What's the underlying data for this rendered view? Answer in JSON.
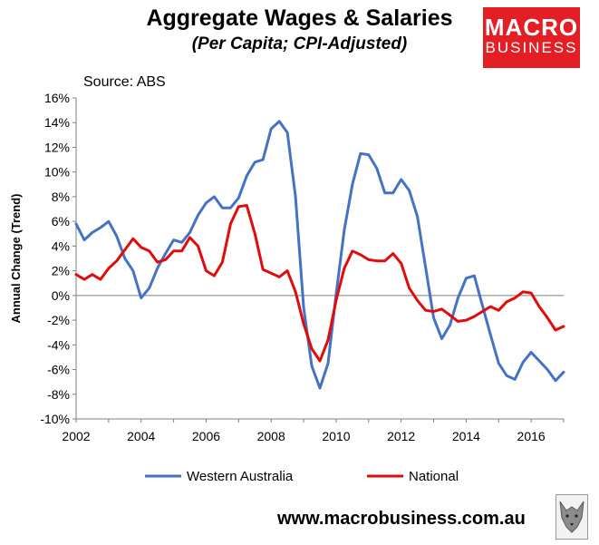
{
  "header": {
    "title": "Aggregate Wages & Salaries",
    "subtitle": "(Per Capita; CPI-Adjusted)",
    "logo_line1": "MACRO",
    "logo_line2": "BUSINESS",
    "source": "Source: ABS"
  },
  "footer": {
    "url": "www.macrobusiness.com.au"
  },
  "colors": {
    "western_australia": "#4472c4",
    "national": "#e20a0a",
    "logo_bg": "#e31e24"
  },
  "chart_data": {
    "type": "line",
    "title": "Aggregate Wages & Salaries",
    "subtitle": "(Per Capita; CPI-Adjusted)",
    "xlabel": "",
    "ylabel": "Annual Change (Trend)",
    "xlim": [
      2002,
      2017
    ],
    "ylim": [
      -10,
      16
    ],
    "x_ticks": [
      2002,
      2004,
      2006,
      2008,
      2010,
      2012,
      2014,
      2016
    ],
    "y_ticks": [
      -10,
      -8,
      -6,
      -4,
      -2,
      0,
      2,
      4,
      6,
      8,
      10,
      12,
      14,
      16
    ],
    "y_tick_labels": [
      "-10%",
      "-8%",
      "-6%",
      "-4%",
      "-2%",
      "0%",
      "2%",
      "4%",
      "6%",
      "8%",
      "10%",
      "12%",
      "14%",
      "16%"
    ],
    "grid": false,
    "legend_position": "bottom",
    "x": [
      2002.0,
      2002.25,
      2002.5,
      2002.75,
      2003.0,
      2003.25,
      2003.5,
      2003.75,
      2004.0,
      2004.25,
      2004.5,
      2004.75,
      2005.0,
      2005.25,
      2005.5,
      2005.75,
      2006.0,
      2006.25,
      2006.5,
      2006.75,
      2007.0,
      2007.25,
      2007.5,
      2007.75,
      2008.0,
      2008.25,
      2008.5,
      2008.75,
      2009.0,
      2009.25,
      2009.5,
      2009.75,
      2010.0,
      2010.25,
      2010.5,
      2010.75,
      2011.0,
      2011.25,
      2011.5,
      2011.75,
      2012.0,
      2012.25,
      2012.5,
      2012.75,
      2013.0,
      2013.25,
      2013.5,
      2013.75,
      2014.0,
      2014.25,
      2014.5,
      2014.75,
      2015.0,
      2015.25,
      2015.5,
      2015.75,
      2016.0,
      2016.25,
      2016.5,
      2016.75,
      2017.0
    ],
    "series": [
      {
        "name": "Western Australia",
        "color": "#4472c4",
        "values": [
          5.8,
          4.5,
          5.1,
          5.5,
          6.0,
          4.8,
          3.0,
          2.0,
          -0.2,
          0.6,
          2.2,
          3.4,
          4.5,
          4.3,
          5.1,
          6.5,
          7.5,
          8.0,
          7.1,
          7.1,
          7.9,
          9.7,
          10.8,
          11.0,
          13.5,
          14.1,
          13.2,
          8.0,
          -1.0,
          -5.7,
          -7.5,
          -5.5,
          0.1,
          5.3,
          9.0,
          11.5,
          11.4,
          10.3,
          8.3,
          8.3,
          9.4,
          8.5,
          6.4,
          2.3,
          -1.8,
          -3.5,
          -2.4,
          -0.2,
          1.4,
          1.6,
          -0.8,
          -3.2,
          -5.5,
          -6.5,
          -6.8,
          -5.4,
          -4.6,
          -5.3,
          -6.0,
          -6.9,
          -6.2
        ]
      },
      {
        "name": "National",
        "color": "#e20a0a",
        "values": [
          1.7,
          1.3,
          1.7,
          1.3,
          2.2,
          2.8,
          3.7,
          4.6,
          3.9,
          3.6,
          2.7,
          2.9,
          3.6,
          3.6,
          4.7,
          4.0,
          2.0,
          1.6,
          2.7,
          5.8,
          7.2,
          7.3,
          5.0,
          2.1,
          1.8,
          1.5,
          2.0,
          0.3,
          -2.3,
          -4.3,
          -5.3,
          -3.6,
          -0.4,
          2.2,
          3.6,
          3.3,
          2.9,
          2.8,
          2.8,
          3.4,
          2.6,
          0.6,
          -0.4,
          -1.2,
          -1.3,
          -1.1,
          -1.6,
          -2.1,
          -2.0,
          -1.7,
          -1.3,
          -0.9,
          -1.2,
          -0.5,
          -0.2,
          0.3,
          0.2,
          -0.9,
          -1.8,
          -2.8,
          -2.5
        ]
      }
    ]
  }
}
